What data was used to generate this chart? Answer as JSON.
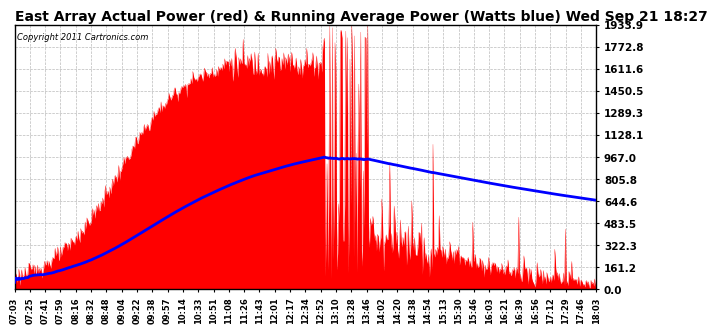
{
  "title": "East Array Actual Power (red) & Running Average Power (Watts blue) Wed Sep 21 18:27",
  "copyright_text": "Copyright 2011 Cartronics.com",
  "background_color": "#ffffff",
  "plot_bg_color": "#ffffff",
  "grid_color": "#aaaaaa",
  "y_max": 1933.9,
  "y_min": 0.0,
  "y_ticks": [
    0.0,
    161.2,
    322.3,
    483.5,
    644.6,
    805.8,
    967.0,
    1128.1,
    1289.3,
    1450.5,
    1611.6,
    1772.8,
    1933.9
  ],
  "title_fontsize": 10,
  "title_color": "#000000",
  "x_tick_labels": [
    "07:03",
    "07:25",
    "07:41",
    "07:59",
    "08:16",
    "08:32",
    "08:48",
    "09:04",
    "09:22",
    "09:38",
    "09:57",
    "10:14",
    "10:33",
    "10:51",
    "11:08",
    "11:26",
    "11:43",
    "12:01",
    "12:17",
    "12:34",
    "12:52",
    "13:10",
    "13:28",
    "13:46",
    "14:02",
    "14:20",
    "14:38",
    "14:54",
    "15:13",
    "15:30",
    "15:46",
    "16:03",
    "16:21",
    "16:39",
    "16:56",
    "17:12",
    "17:29",
    "17:46",
    "18:03"
  ]
}
